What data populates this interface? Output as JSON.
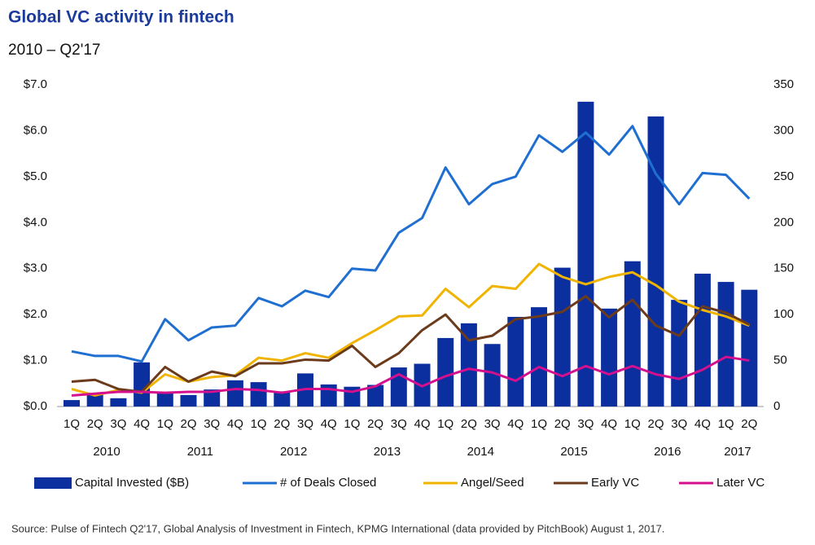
{
  "chart_data": {
    "type": "bar-line",
    "title": "Global VC activity in fintech",
    "subtitle": "2010 – Q2'17",
    "source": "Source: Pulse of Fintech Q2'17, Global Analysis of Investment in Fintech, KPMG International (data provided by PitchBook) August 1, 2017.",
    "categories": [
      "1Q",
      "2Q",
      "3Q",
      "4Q",
      "1Q",
      "2Q",
      "3Q",
      "4Q",
      "1Q",
      "2Q",
      "3Q",
      "4Q",
      "1Q",
      "2Q",
      "3Q",
      "4Q",
      "1Q",
      "2Q",
      "3Q",
      "4Q",
      "1Q",
      "2Q",
      "3Q",
      "4Q",
      "1Q",
      "2Q",
      "3Q",
      "4Q",
      "1Q",
      "2Q"
    ],
    "year_labels": [
      "2010",
      "2011",
      "2012",
      "2013",
      "2014",
      "2015",
      "2016",
      "2017"
    ],
    "ylim": [
      0,
      7
    ],
    "yticks": [
      {
        "value": 0,
        "label": "$0.0"
      },
      {
        "value": 1,
        "label": "$1.0"
      },
      {
        "value": 2,
        "label": "$2.0"
      },
      {
        "value": 3,
        "label": "$3.0"
      },
      {
        "value": 4,
        "label": "$4.0"
      },
      {
        "value": 5,
        "label": "$5.0"
      },
      {
        "value": 6,
        "label": "$6.0"
      },
      {
        "value": 7,
        "label": "$7.0"
      }
    ],
    "y2lim": [
      0,
      350
    ],
    "y2ticks": [
      0,
      50,
      100,
      150,
      200,
      250,
      300,
      350
    ],
    "legend": "bottom",
    "series": [
      {
        "name": "Capital Invested ($B)",
        "type": "bar",
        "color": "#0b2f9f",
        "values": [
          0.14,
          0.28,
          0.18,
          0.96,
          0.32,
          0.25,
          0.37,
          0.57,
          0.53,
          0.33,
          0.72,
          0.48,
          0.43,
          0.47,
          0.85,
          0.93,
          1.49,
          1.81,
          1.36,
          1.95,
          2.16,
          3.02,
          6.63,
          2.13,
          3.16,
          6.31,
          2.32,
          2.89,
          2.71,
          2.54
        ]
      },
      {
        "name": "# of Deals Closed",
        "type": "line",
        "axis": "y2",
        "color": "#1f6fd1",
        "values": [
          60,
          55,
          55,
          49,
          95,
          72,
          86,
          88,
          118,
          109,
          126,
          119,
          150,
          148,
          189,
          205,
          260,
          220,
          242,
          250,
          295,
          277,
          298,
          274,
          305,
          253,
          220,
          254,
          252,
          226
        ]
      },
      {
        "name": "Angel/Seed",
        "type": "line",
        "axis": "y2",
        "color": "#f0b400",
        "values": [
          19,
          12,
          18,
          15,
          35,
          27,
          32,
          34,
          53,
          50,
          58,
          53,
          69,
          83,
          98,
          99,
          128,
          108,
          131,
          128,
          155,
          141,
          133,
          141,
          146,
          132,
          114,
          105,
          98,
          88
        ]
      },
      {
        "name": "Early VC",
        "type": "line",
        "axis": "y2",
        "color": "#6b3b1c",
        "values": [
          27,
          29,
          19,
          16,
          43,
          27,
          38,
          33,
          47,
          47,
          51,
          50,
          66,
          43,
          58,
          83,
          100,
          72,
          77,
          95,
          98,
          103,
          120,
          97,
          116,
          88,
          77,
          109,
          102,
          89
        ]
      },
      {
        "name": "Later VC",
        "type": "line",
        "axis": "y2",
        "color": "#d4108f",
        "values": [
          12,
          14,
          16,
          16,
          15,
          16,
          16,
          19,
          18,
          15,
          19,
          19,
          16,
          22,
          35,
          22,
          33,
          41,
          37,
          28,
          43,
          33,
          44,
          35,
          44,
          35,
          30,
          40,
          54,
          50
        ]
      }
    ]
  }
}
